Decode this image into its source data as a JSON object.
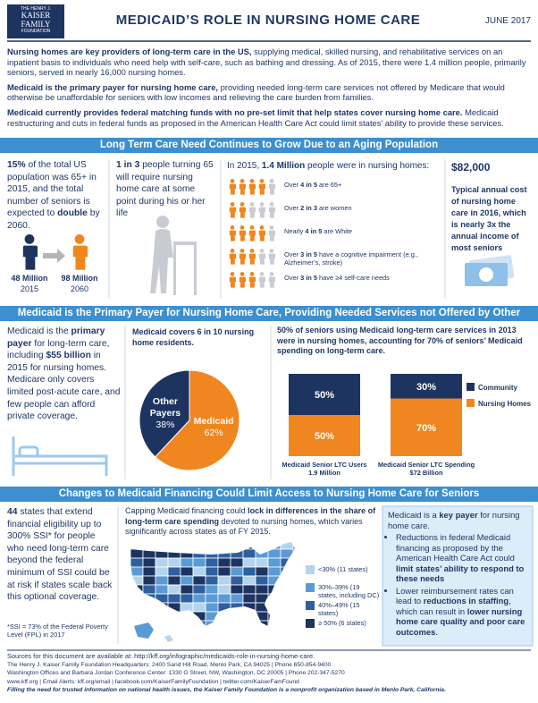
{
  "header": {
    "logo": [
      "THE HENRY J.",
      "KAISER",
      "FAMILY",
      "FOUNDATION"
    ],
    "title": "MEDICAID’S ROLE IN NURSING HOME CARE",
    "date": "JUNE 2017"
  },
  "intro": [
    [
      {
        "text": "Nursing homes are key providers of long-term care in the US,",
        "bold": true
      },
      {
        "text": " supplying medical, skilled nursing, and rehabilitative services on an inpatient basis to individuals who need help with self-care, such as bathing and dressing. As of 2015, there were 1.4 million people, primarily seniors, served in nearly 16,000 nursing homes."
      }
    ],
    [
      {
        "text": "Medicaid is the primary payer for nursing home care,",
        "bold": true
      },
      {
        "text": " providing needed long-term care services not offered by Medicare that would otherwise be unaffordable for seniors with low incomes and relieving the care burden from families."
      }
    ],
    [
      {
        "text": "Medicaid currently provides federal matching funds with no pre-set limit that help states cover nursing home care.",
        "bold": true
      },
      {
        "text": " Medicaid restructuring and cuts in federal funds as proposed in the American Health Care Act could limit states’ ability to provide these services."
      }
    ]
  ],
  "sections": [
    "Long Term Care Need Continues to Grow Due to an Aging Population",
    "Medicaid is the Primary Payer for Nursing Home Care, Providing Needed Services not Offered by Other Coverage",
    "Changes to Medicaid Financing Could Limit Access to Nursing Home Care for Seniors"
  ],
  "s1": {
    "population": [
      {
        "text": "15%",
        "bold": true
      },
      {
        "text": " of the total US population was 65+ in 2015, and the total number of seniors is expected to "
      },
      {
        "text": "double",
        "bold": true
      },
      {
        "text": " by 2060."
      }
    ],
    "figures": [
      {
        "amount": "48 Million",
        "year": "2015"
      },
      {
        "amount": "98 Million",
        "year": "2060"
      }
    ],
    "need": [
      {
        "text": "1 in 3",
        "bold": true
      },
      {
        "text": " people turning 65 will require nursing home care at some point during his or her life"
      }
    ],
    "nursing": {
      "heading": [
        {
          "text": "In 2015, "
        },
        {
          "text": "1.4 Million",
          "bold": true
        },
        {
          "text": " people were in nursing homes:"
        }
      ],
      "icon_total": 5,
      "rows": [
        {
          "filled": 4,
          "text": [
            {
              "text": "Over "
            },
            {
              "text": "4 in 5",
              "bold": true
            },
            {
              "text": " are 65+"
            }
          ]
        },
        {
          "filled": 2,
          "text": [
            {
              "text": "Over "
            },
            {
              "text": "2 in 3",
              "bold": true
            },
            {
              "text": " are women"
            }
          ]
        },
        {
          "filled": 4,
          "text": [
            {
              "text": "Nearly "
            },
            {
              "text": "4 in 5",
              "bold": true
            },
            {
              "text": " are White"
            }
          ]
        },
        {
          "filled": 3,
          "text": [
            {
              "text": "Over "
            },
            {
              "text": "3 in 5",
              "bold": true
            },
            {
              "text": " have a cognitive impairment (e.g., Alzheimer’s, stroke)"
            }
          ]
        },
        {
          "filled": 3,
          "text": [
            {
              "text": "Over "
            },
            {
              "text": "3 in 5",
              "bold": true
            },
            {
              "text": " have ≥4 self-care needs"
            }
          ]
        }
      ]
    },
    "cost": "$82,000",
    "cost_text": "Typical annual cost of nursing home care in 2016, which is nearly 3x the annual income of most seniors"
  },
  "s2": {
    "payer": [
      {
        "text": "Medicaid is the "
      },
      {
        "text": "primary payer",
        "bold": true
      },
      {
        "text": " for long-term care, including "
      },
      {
        "text": "$55 billion",
        "bold": true
      },
      {
        "text": " in 2015 for nursing homes. Medicare only covers limited post-acute care, and few people can afford private coverage."
      }
    ],
    "pie": {
      "type": "pie",
      "heading": [
        {
          "text": "Medicaid covers "
        },
        {
          "text": "6 in 10",
          "bold": true
        },
        {
          "text": " nursing home residents."
        }
      ],
      "categories": [
        "Medicaid",
        "Other Payers"
      ],
      "values": [
        62,
        38
      ],
      "value_labels": [
        "62%",
        "38%"
      ],
      "colors": [
        "#f0861f",
        "#1d3461"
      ]
    },
    "bars": {
      "type": "stacked-bar",
      "heading": [
        {
          "text": "50%",
          "bold": true
        },
        {
          "text": " of seniors using Medicaid long-term care services in 2013 were in nursing homes, accounting for "
        },
        {
          "text": "70%",
          "bold": true
        },
        {
          "text": " of seniors’ Medicaid spending on long-term care."
        }
      ],
      "categories": [
        "Medicaid Senior LTC Users",
        "Medicaid Senior LTC Spending"
      ],
      "sublabels": [
        "1.9 Million",
        "$72 Billion"
      ],
      "series": [
        {
          "name": "Community",
          "color": "#1d3461",
          "values": [
            50,
            30
          ],
          "value_labels": [
            "50%",
            "30%"
          ]
        },
        {
          "name": "Nursing Homes",
          "color": "#f0861f",
          "values": [
            50,
            70
          ],
          "value_labels": [
            "50%",
            "70%"
          ]
        }
      ]
    }
  },
  "s3": {
    "eligibility": [
      {
        "text": "44",
        "bold": true
      },
      {
        "text": " states that extend financial eligibility up to 300% SSI* for people who need long-term care beyond the federal minimum of SSI could be at risk if states scale back this optional coverage."
      }
    ],
    "note": "*SSI = 73% of the Federal Poverty Level (FPL) in 2017",
    "map_heading": [
      {
        "text": "Capping Medicaid financing could "
      },
      {
        "text": "lock in differences in the share of long-term care spending",
        "bold": true
      },
      {
        "text": " devoted to nursing homes, which varies significantly across states as of FY 2015."
      }
    ],
    "legend": [
      {
        "label": "<30% (11 states)",
        "color": "#b3d4ee"
      },
      {
        "label": "30%–39% (19 states, including DC)",
        "color": "#5b9bd5"
      },
      {
        "label": "40%–49% (15 states)",
        "color": "#2e5f9e"
      },
      {
        "label": "≥ 50% (6 states)",
        "color": "#1d3461"
      }
    ],
    "box_intro": [
      {
        "text": "Medicaid is a "
      },
      {
        "text": "key payer",
        "bold": true
      },
      {
        "text": " for nursing home care."
      }
    ],
    "bullets": [
      [
        {
          "text": "Reductions in federal Medicaid financing as proposed by the American Health Care Act could "
        },
        {
          "text": "limit states’ ability to respond to these needs",
          "bold": true
        }
      ],
      [
        {
          "text": "Lower reimbursement rates can lead to "
        },
        {
          "text": "reductions in staffing",
          "bold": true
        },
        {
          "text": ", which can result in "
        },
        {
          "text": "lower nursing home care quality and poor care outcomes",
          "bold": true
        },
        {
          "text": "."
        }
      ]
    ]
  },
  "footer": {
    "lines": [
      "Sources for this document are available at: http://kff.org/infographic/medicaids-role-in-nursing-home-care.",
      "The Henry J. Kaiser Family Foundation Headquarters: 2400 Sand Hill Road, Menlo Park, CA 94025 | Phone 650-854-9400",
      "Washington Offices and Barbara Jordan Conference Center: 1330 G Street, NW, Washington, DC 20005 | Phone 202-347-5270",
      "www.kff.org | Email Alerts: kff.org/email | facebook.com/KaiserFamilyFoundation | twitter.com/KaiserFamFound"
    ],
    "tagline": "Filling the need for trusted information on national health issues, the Kaiser Family Foundation is a nonprofit organization based in Menlo Park, California."
  }
}
